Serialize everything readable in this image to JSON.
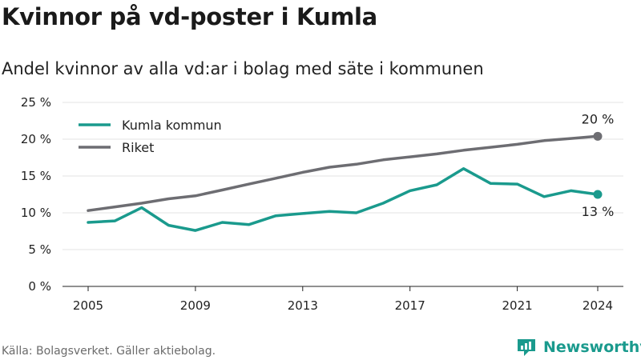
{
  "title": "Kvinnor på vd-poster i Kumla",
  "subtitle": "Andel kvinnor av alla vd:ar i bolag med säte i kommunen",
  "source": "Källa: Bolagsverket. Gäller aktiebolag.",
  "brand": {
    "name": "Newsworthy",
    "color": "#1a9a8d",
    "icon": "newsworthy-logo-icon"
  },
  "chart_data": {
    "type": "line",
    "title": "Kvinnor på vd-poster i Kumla",
    "subtitle": "Andel kvinnor av alla vd:ar i bolag med säte i kommunen",
    "xlabel": "",
    "ylabel": "",
    "x": [
      2005,
      2006,
      2007,
      2008,
      2009,
      2010,
      2011,
      2012,
      2013,
      2014,
      2015,
      2016,
      2017,
      2018,
      2019,
      2020,
      2021,
      2022,
      2023,
      2024
    ],
    "xticks": [
      2005,
      2009,
      2013,
      2017,
      2021,
      2024
    ],
    "xtick_labels": [
      "2005",
      "2009",
      "2013",
      "2017",
      "2021",
      "2024"
    ],
    "xlim": [
      2005,
      2024
    ],
    "ylim": [
      0,
      25
    ],
    "yticks": [
      0,
      5,
      10,
      15,
      20,
      25
    ],
    "ytick_labels": [
      "0 %",
      "5 %",
      "10 %",
      "15 %",
      "20 %",
      "25 %"
    ],
    "grid": "horizontal",
    "legend": "top-left",
    "series": [
      {
        "name": "Kumla kommun",
        "color": "#1a9a8d",
        "values": [
          8.7,
          8.9,
          10.7,
          8.3,
          7.6,
          8.7,
          8.4,
          9.6,
          9.9,
          10.2,
          10.0,
          11.3,
          13.0,
          13.8,
          16.0,
          14.0,
          13.9,
          12.2,
          13.0,
          12.5
        ],
        "end_label": "13 %"
      },
      {
        "name": "Riket",
        "color": "#6d6d72",
        "values": [
          10.3,
          10.8,
          11.3,
          11.9,
          12.3,
          13.1,
          13.9,
          14.7,
          15.5,
          16.2,
          16.6,
          17.2,
          17.6,
          18.0,
          18.5,
          18.9,
          19.3,
          19.8,
          20.1,
          20.4
        ],
        "end_label": "20 %"
      }
    ]
  }
}
